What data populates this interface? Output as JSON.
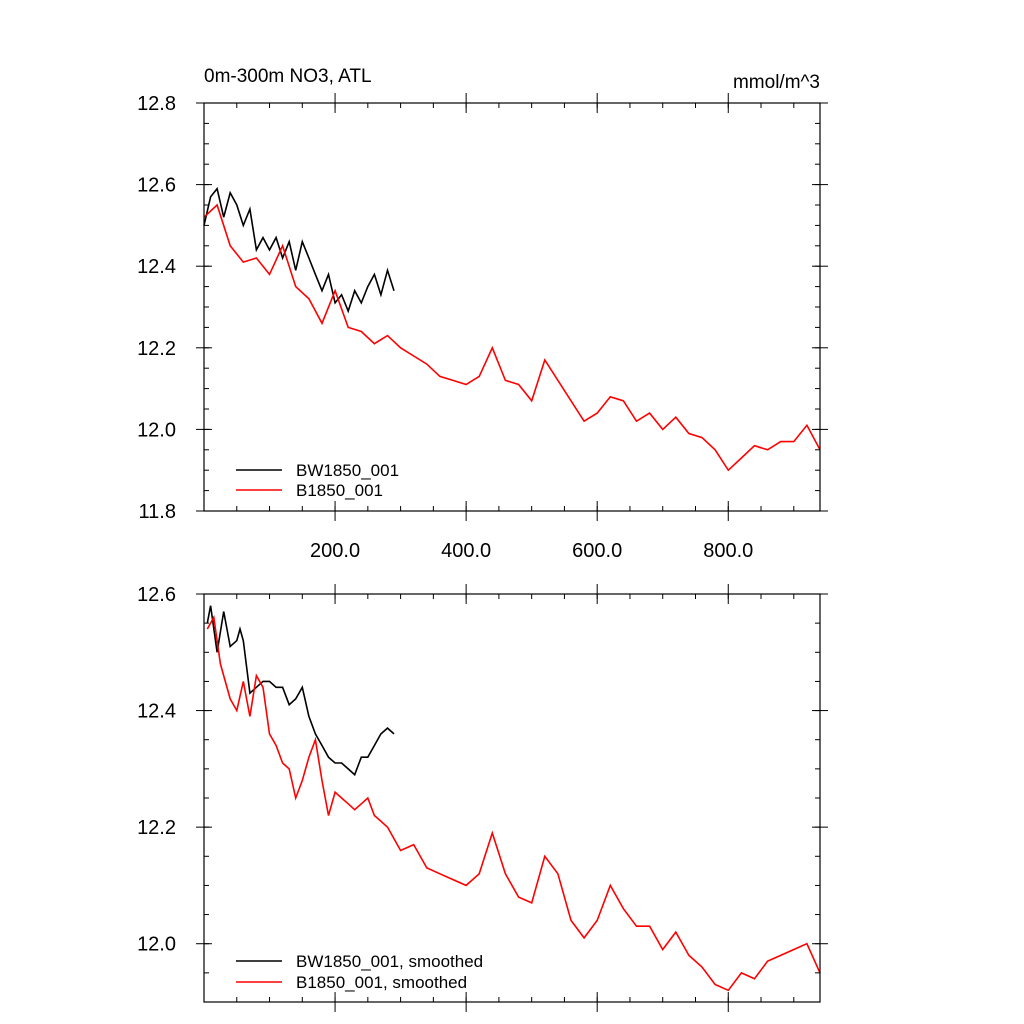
{
  "chart_data": [
    {
      "type": "line",
      "title": "0m-300m NO3, ATL",
      "units": "mmol/m^3",
      "xlim": [
        0,
        940
      ],
      "ylim": [
        11.8,
        12.8
      ],
      "x_ticks": [
        200,
        400,
        600,
        800
      ],
      "x_tick_labels": [
        "200.0",
        "400.0",
        "600.0",
        "800.0"
      ],
      "y_ticks": [
        11.8,
        12.0,
        12.2,
        12.4,
        12.6,
        12.8
      ],
      "y_tick_labels": [
        "11.8",
        "12.0",
        "12.2",
        "12.4",
        "12.6",
        "12.8"
      ],
      "legend_position": "bottom-left",
      "series": [
        {
          "name": "BW1850_001",
          "color": "#000000",
          "x": [
            0,
            10,
            20,
            30,
            40,
            50,
            60,
            70,
            80,
            90,
            100,
            110,
            120,
            130,
            140,
            150,
            160,
            170,
            180,
            190,
            200,
            210,
            220,
            230,
            240,
            250,
            260,
            270,
            280,
            290
          ],
          "y": [
            12.5,
            12.57,
            12.59,
            12.52,
            12.58,
            12.55,
            12.5,
            12.54,
            12.44,
            12.47,
            12.44,
            12.47,
            12.42,
            12.46,
            12.39,
            12.46,
            12.42,
            12.38,
            12.34,
            12.38,
            12.31,
            12.33,
            12.29,
            12.34,
            12.31,
            12.35,
            12.38,
            12.33,
            12.39,
            12.34
          ]
        },
        {
          "name": "B1850_001",
          "color": "#ff0000",
          "x": [
            0,
            20,
            40,
            60,
            80,
            100,
            120,
            140,
            160,
            180,
            200,
            220,
            240,
            260,
            280,
            300,
            320,
            340,
            360,
            380,
            400,
            420,
            440,
            460,
            480,
            500,
            520,
            540,
            560,
            580,
            600,
            620,
            640,
            660,
            680,
            700,
            720,
            740,
            760,
            780,
            800,
            820,
            840,
            860,
            880,
            900,
            920,
            940
          ],
          "y": [
            12.52,
            12.55,
            12.45,
            12.41,
            12.42,
            12.38,
            12.45,
            12.35,
            12.32,
            12.26,
            12.34,
            12.25,
            12.24,
            12.21,
            12.23,
            12.2,
            12.18,
            12.16,
            12.13,
            12.12,
            12.11,
            12.13,
            12.2,
            12.12,
            12.11,
            12.07,
            12.17,
            12.12,
            12.07,
            12.02,
            12.04,
            12.08,
            12.07,
            12.02,
            12.04,
            12.0,
            12.03,
            11.99,
            11.98,
            11.95,
            11.9,
            11.93,
            11.96,
            11.95,
            11.97,
            11.97,
            12.01,
            11.95
          ]
        }
      ]
    },
    {
      "type": "line",
      "title": "",
      "units": "",
      "xlim": [
        0,
        940
      ],
      "ylim": [
        11.9,
        12.6
      ],
      "x_ticks": [
        200,
        400,
        600,
        800
      ],
      "x_tick_labels": [
        "",
        "",
        "",
        ""
      ],
      "y_ticks": [
        12.0,
        12.2,
        12.4,
        12.6
      ],
      "y_tick_labels": [
        "12.0",
        "12.2",
        "12.4",
        "12.6"
      ],
      "legend_position": "bottom-left",
      "series": [
        {
          "name": "BW1850_001, smoothed",
          "color": "#000000",
          "x": [
            5,
            10,
            20,
            30,
            40,
            50,
            55,
            60,
            70,
            80,
            90,
            100,
            110,
            120,
            130,
            140,
            150,
            160,
            170,
            180,
            190,
            200,
            210,
            220,
            230,
            240,
            250,
            260,
            270,
            280,
            290
          ],
          "y": [
            12.55,
            12.58,
            12.5,
            12.57,
            12.51,
            12.52,
            12.54,
            12.52,
            12.43,
            12.44,
            12.45,
            12.45,
            12.44,
            12.44,
            12.41,
            12.42,
            12.44,
            12.39,
            12.36,
            12.34,
            12.32,
            12.31,
            12.31,
            12.3,
            12.29,
            12.32,
            12.32,
            12.34,
            12.36,
            12.37,
            12.36
          ]
        },
        {
          "name": "B1850_001, smoothed",
          "color": "#ff0000",
          "x": [
            5,
            15,
            25,
            40,
            50,
            60,
            70,
            80,
            90,
            100,
            110,
            120,
            130,
            140,
            150,
            160,
            170,
            180,
            190,
            200,
            210,
            220,
            230,
            240,
            250,
            260,
            280,
            300,
            320,
            340,
            360,
            380,
            400,
            420,
            440,
            460,
            480,
            500,
            520,
            540,
            560,
            580,
            600,
            620,
            640,
            660,
            680,
            700,
            720,
            740,
            760,
            780,
            800,
            820,
            840,
            860,
            880,
            900,
            920,
            940
          ],
          "y": [
            12.54,
            12.56,
            12.48,
            12.42,
            12.4,
            12.45,
            12.39,
            12.46,
            12.44,
            12.36,
            12.34,
            12.31,
            12.3,
            12.25,
            12.28,
            12.32,
            12.35,
            12.28,
            12.22,
            12.26,
            12.25,
            12.24,
            12.23,
            12.24,
            12.25,
            12.22,
            12.2,
            12.16,
            12.17,
            12.13,
            12.12,
            12.11,
            12.1,
            12.12,
            12.19,
            12.12,
            12.08,
            12.07,
            12.15,
            12.12,
            12.04,
            12.01,
            12.04,
            12.1,
            12.06,
            12.03,
            12.03,
            11.99,
            12.02,
            11.98,
            11.96,
            11.93,
            11.92,
            11.95,
            11.94,
            11.97,
            11.98,
            11.99,
            12.0,
            11.95
          ]
        }
      ]
    }
  ]
}
